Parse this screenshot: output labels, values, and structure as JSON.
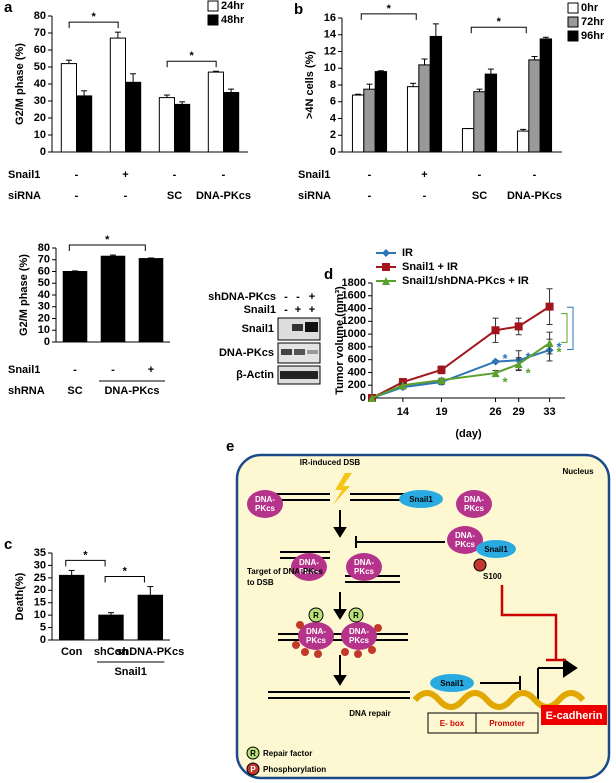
{
  "chart_data": [
    {
      "type": "bar",
      "panel_label": "a",
      "ylabel": "G2/M phase (%)",
      "ylim": [
        0,
        80
      ],
      "yticks": [
        0,
        10,
        20,
        30,
        40,
        50,
        60,
        70,
        80
      ],
      "legend": "top-right",
      "series": [
        {
          "name": "24hr",
          "color": "#ffffff",
          "values": [
            52,
            67,
            32,
            47
          ],
          "errors": [
            2,
            3.5,
            1.5,
            0.5
          ]
        },
        {
          "name": "48hr",
          "color": "#000000",
          "values": [
            33,
            41,
            28,
            35
          ],
          "errors": [
            3,
            5,
            1.5,
            2
          ]
        }
      ],
      "rows": [
        {
          "label": "Snail1",
          "values": [
            "-",
            "+",
            "-",
            "-"
          ]
        },
        {
          "label": "siRNA",
          "values": [
            "-",
            "-",
            "SC",
            "DNA-PKcs"
          ]
        }
      ],
      "significance": [
        {
          "from": 0,
          "to": 1,
          "label": "*"
        },
        {
          "from": 2,
          "to": 3,
          "label": "*"
        }
      ]
    },
    {
      "type": "bar",
      "panel_label": "b",
      "ylabel": ">4N cells (%)",
      "ylim": [
        0,
        16
      ],
      "yticks": [
        0,
        2,
        4,
        6,
        8,
        10,
        12,
        14,
        16
      ],
      "legend": "top-right",
      "series": [
        {
          "name": "0hr",
          "color": "#ffffff",
          "values": [
            6.8,
            7.8,
            2.8,
            2.5
          ],
          "errors": [
            0.1,
            0.4,
            0,
            0.2
          ]
        },
        {
          "name": "72hr",
          "color": "#999999",
          "values": [
            7.5,
            10.4,
            7.2,
            11
          ],
          "errors": [
            0.6,
            0.7,
            0.3,
            0.4
          ]
        },
        {
          "name": "96hr",
          "color": "#000000",
          "values": [
            9.6,
            13.8,
            9.3,
            13.5
          ],
          "errors": [
            0.1,
            1.5,
            0.6,
            0.2
          ]
        }
      ],
      "rows": [
        {
          "label": "Snail1",
          "values": [
            "-",
            "+",
            "-",
            "-"
          ]
        },
        {
          "label": "siRNA",
          "values": [
            "-",
            "-",
            "SC",
            "DNA-PKcs"
          ]
        }
      ],
      "significance": [
        {
          "from": 0,
          "to": 1,
          "label": "*"
        },
        {
          "from": 2,
          "to": 3,
          "label": "*"
        }
      ]
    },
    {
      "type": "bar",
      "ylabel": "G2/M phase (%)",
      "ylim": [
        0,
        80
      ],
      "yticks": [
        0,
        10,
        20,
        30,
        40,
        50,
        60,
        70,
        80
      ],
      "series": [
        {
          "color": "#000000",
          "values": [
            60,
            73,
            71
          ],
          "errors": [
            0.5,
            1,
            0.5
          ]
        }
      ],
      "rows": [
        {
          "label": "Snail1",
          "values": [
            "-",
            "-",
            "+"
          ]
        },
        {
          "label": "shRNA",
          "values": [
            "SC",
            "DNA-PKcs",
            null
          ]
        }
      ],
      "significance": [
        {
          "from": 0,
          "to": 2,
          "label": "*"
        }
      ]
    },
    {
      "type": "bar",
      "panel_label": "c",
      "ylabel": "Death(%)",
      "ylim": [
        0,
        35
      ],
      "yticks": [
        0,
        5,
        10,
        15,
        20,
        25,
        30,
        35
      ],
      "categories": [
        "Con",
        "shCon",
        "shDNA-PKcs"
      ],
      "series": [
        {
          "color": "#000000",
          "values": [
            26,
            10,
            18
          ],
          "errors": [
            2,
            1,
            3.5
          ]
        }
      ],
      "rows": [
        {
          "values": [
            null,
            "Snail1",
            null
          ]
        }
      ],
      "significance": [
        {
          "from": 0,
          "to": 1,
          "label": "*"
        },
        {
          "from": 1,
          "to": 2,
          "label": "*"
        }
      ]
    },
    {
      "type": "line",
      "panel_label": "d",
      "ylabel": "Tumor volume (mm³)",
      "xlabel": "(day)",
      "xlim": [
        10,
        35
      ],
      "xticks": [
        14,
        19,
        26,
        29,
        33
      ],
      "ylim": [
        0,
        1800
      ],
      "yticks": [
        0,
        200,
        400,
        600,
        800,
        1000,
        1200,
        1400,
        1600,
        1800
      ],
      "x": [
        10,
        14,
        19,
        26,
        29,
        33
      ],
      "series": [
        {
          "name": "IR",
          "color": "#2e75b6",
          "marker": "diamond",
          "values": [
            0,
            170,
            250,
            570,
            590,
            750
          ],
          "errors": [
            0,
            30,
            40,
            20,
            150,
            170
          ],
          "annotations": [
            null,
            null,
            null,
            "*",
            "*",
            "*"
          ]
        },
        {
          "name": "Snail1 + IR",
          "color": "#a0161c",
          "marker": "square",
          "values": [
            0,
            250,
            440,
            1060,
            1120,
            1430
          ],
          "errors": [
            0,
            40,
            60,
            190,
            130,
            280
          ]
        },
        {
          "name": "Snail1/shDNA-PKcs + IR",
          "color": "#5aa02c",
          "marker": "triangle",
          "values": [
            0,
            200,
            280,
            390,
            530,
            860
          ],
          "errors": [
            0,
            30,
            30,
            40,
            100,
            170
          ],
          "annotations": [
            null,
            null,
            null,
            "*",
            "*",
            "*"
          ]
        }
      ]
    }
  ],
  "blot": {
    "rows": [
      {
        "label": "shDNA-PKcs",
        "values": [
          "-",
          "-",
          "+"
        ]
      },
      {
        "label": "Snail1",
        "values": [
          "-",
          "+",
          "+"
        ]
      }
    ],
    "bands": [
      "Snail1",
      "DNA-PKcs",
      "β-Actin"
    ]
  },
  "diagram": {
    "panel_label": "e",
    "ir": "IR-induced DSB",
    "nucleus": "Nucleus",
    "dna_pkcs": [
      "DNA-",
      "PKcs"
    ],
    "snail1": "Snail1",
    "target": [
      "Target of DNA-PKcs",
      "to DSB"
    ],
    "s100": "S100",
    "repair": "DNA repair",
    "e_cadherin": "E-cadherin",
    "ebox": "E- box",
    "promoter": "Promoter",
    "r": "R",
    "p": "P",
    "legend": [
      "Repair factor",
      "Phosphorylation"
    ]
  }
}
